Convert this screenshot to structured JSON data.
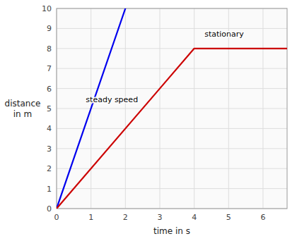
{
  "chart_data": {
    "type": "line",
    "title": "",
    "xlabel": "time in s",
    "ylabel": "distance\nin m",
    "xlim": [
      0,
      6.7
    ],
    "ylim": [
      0,
      10
    ],
    "xticks": [
      0,
      1,
      2,
      3,
      4,
      5,
      6
    ],
    "yticks": [
      0,
      1,
      2,
      3,
      4,
      5,
      6,
      7,
      8,
      9,
      10
    ],
    "grid": true,
    "series": [
      {
        "color": "#0000ee",
        "x": [
          0,
          2
        ],
        "values": [
          0,
          10
        ]
      },
      {
        "color": "#cc0000",
        "x": [
          0,
          3,
          4,
          6.7
        ],
        "values": [
          0,
          6,
          8,
          8
        ]
      }
    ],
    "annotations": [
      {
        "text": "steady speed",
        "x": 0.85,
        "y": 5.3
      },
      {
        "text": "stationary",
        "x": 4.3,
        "y": 8.6
      }
    ]
  }
}
